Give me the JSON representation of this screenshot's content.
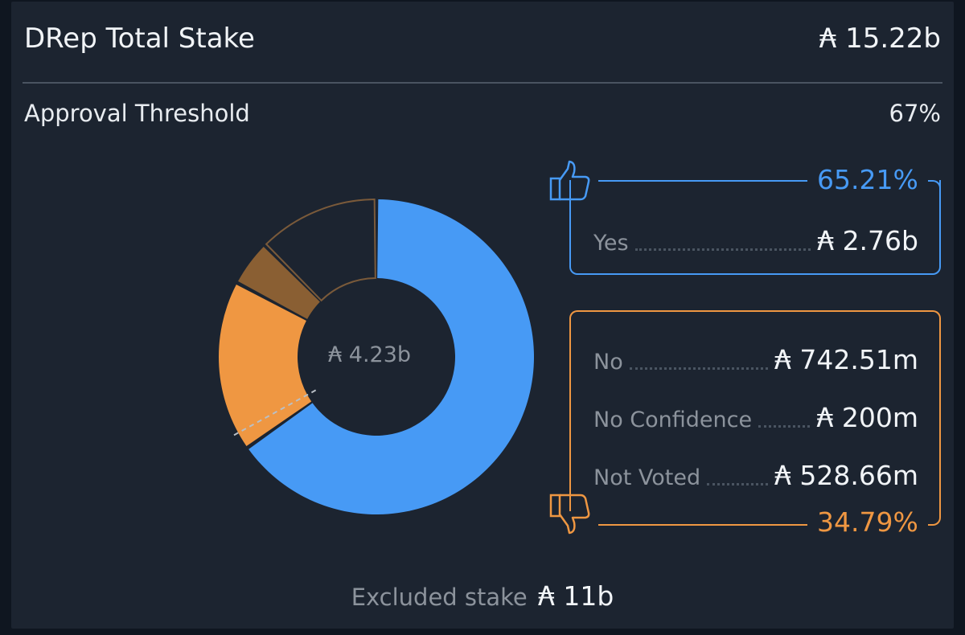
{
  "header": {
    "title": "DRep Total Stake",
    "total": "₳ 15.22b"
  },
  "threshold": {
    "label": "Approval Threshold",
    "value": "67%"
  },
  "chart_data": {
    "type": "donut",
    "center_label": "₳ 4.23b",
    "segments": [
      {
        "name": "Yes",
        "value": 2.76,
        "unit": "b",
        "color": "#479af5"
      },
      {
        "name": "No",
        "value": 742.51,
        "unit": "m",
        "color": "#ef9742"
      },
      {
        "name": "No Confidence",
        "value": 200,
        "unit": "m",
        "color": "#8a5f33"
      },
      {
        "name": "Not Voted",
        "value": 528.66,
        "unit": "m",
        "color": "none-outline"
      }
    ],
    "threshold_fraction": 0.67
  },
  "yes_panel": {
    "percent": "65.21%",
    "label": "Yes",
    "value": "₳ 2.76b",
    "icon": "thumbs-up-icon",
    "color": "#479af5"
  },
  "no_panel": {
    "percent": "34.79%",
    "icon": "thumbs-down-icon",
    "color": "#ef9742",
    "rows": [
      {
        "label": "No",
        "value": "₳ 742.51m"
      },
      {
        "label": "No Confidence",
        "value": "₳ 200m"
      },
      {
        "label": "Not Voted",
        "value": "₳ 528.66m"
      }
    ]
  },
  "excluded": {
    "label": "Excluded stake",
    "value": "₳ 11b"
  }
}
